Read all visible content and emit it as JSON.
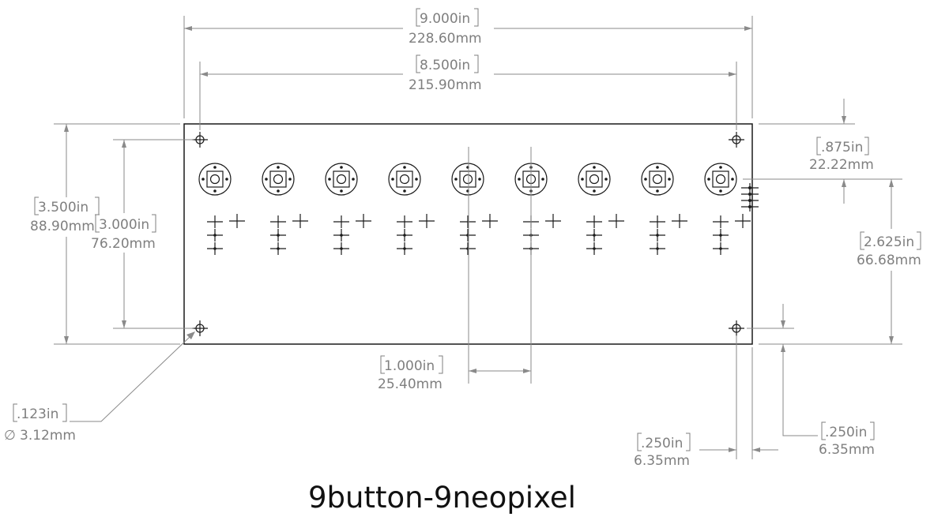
{
  "title": "9button-9neopixel",
  "dimensions": {
    "overall_width": {
      "in": "9.000in",
      "mm": "228.60mm"
    },
    "hole_spacing_x": {
      "in": "8.500in",
      "mm": "215.90mm"
    },
    "overall_height": {
      "in": "3.500in",
      "mm": "88.90mm"
    },
    "hole_spacing_y": {
      "in": "3.000in",
      "mm": "76.20mm"
    },
    "top_to_buttons": {
      "in": ".875in",
      "mm": "22.22mm"
    },
    "buttons_to_bottom": {
      "in": "2.625in",
      "mm": "66.68mm"
    },
    "button_pitch": {
      "in": "1.000in",
      "mm": "25.40mm"
    },
    "hole_diameter": {
      "in": ".123in",
      "mm": "3.12mm",
      "symbol": "∅"
    },
    "hole_inset_x": {
      "in": ".250in",
      "mm": "6.35mm"
    },
    "hole_inset_y": {
      "in": ".250in",
      "mm": "6.35mm"
    }
  },
  "board": {
    "button_count": 9,
    "mounting_hole_count": 4
  }
}
